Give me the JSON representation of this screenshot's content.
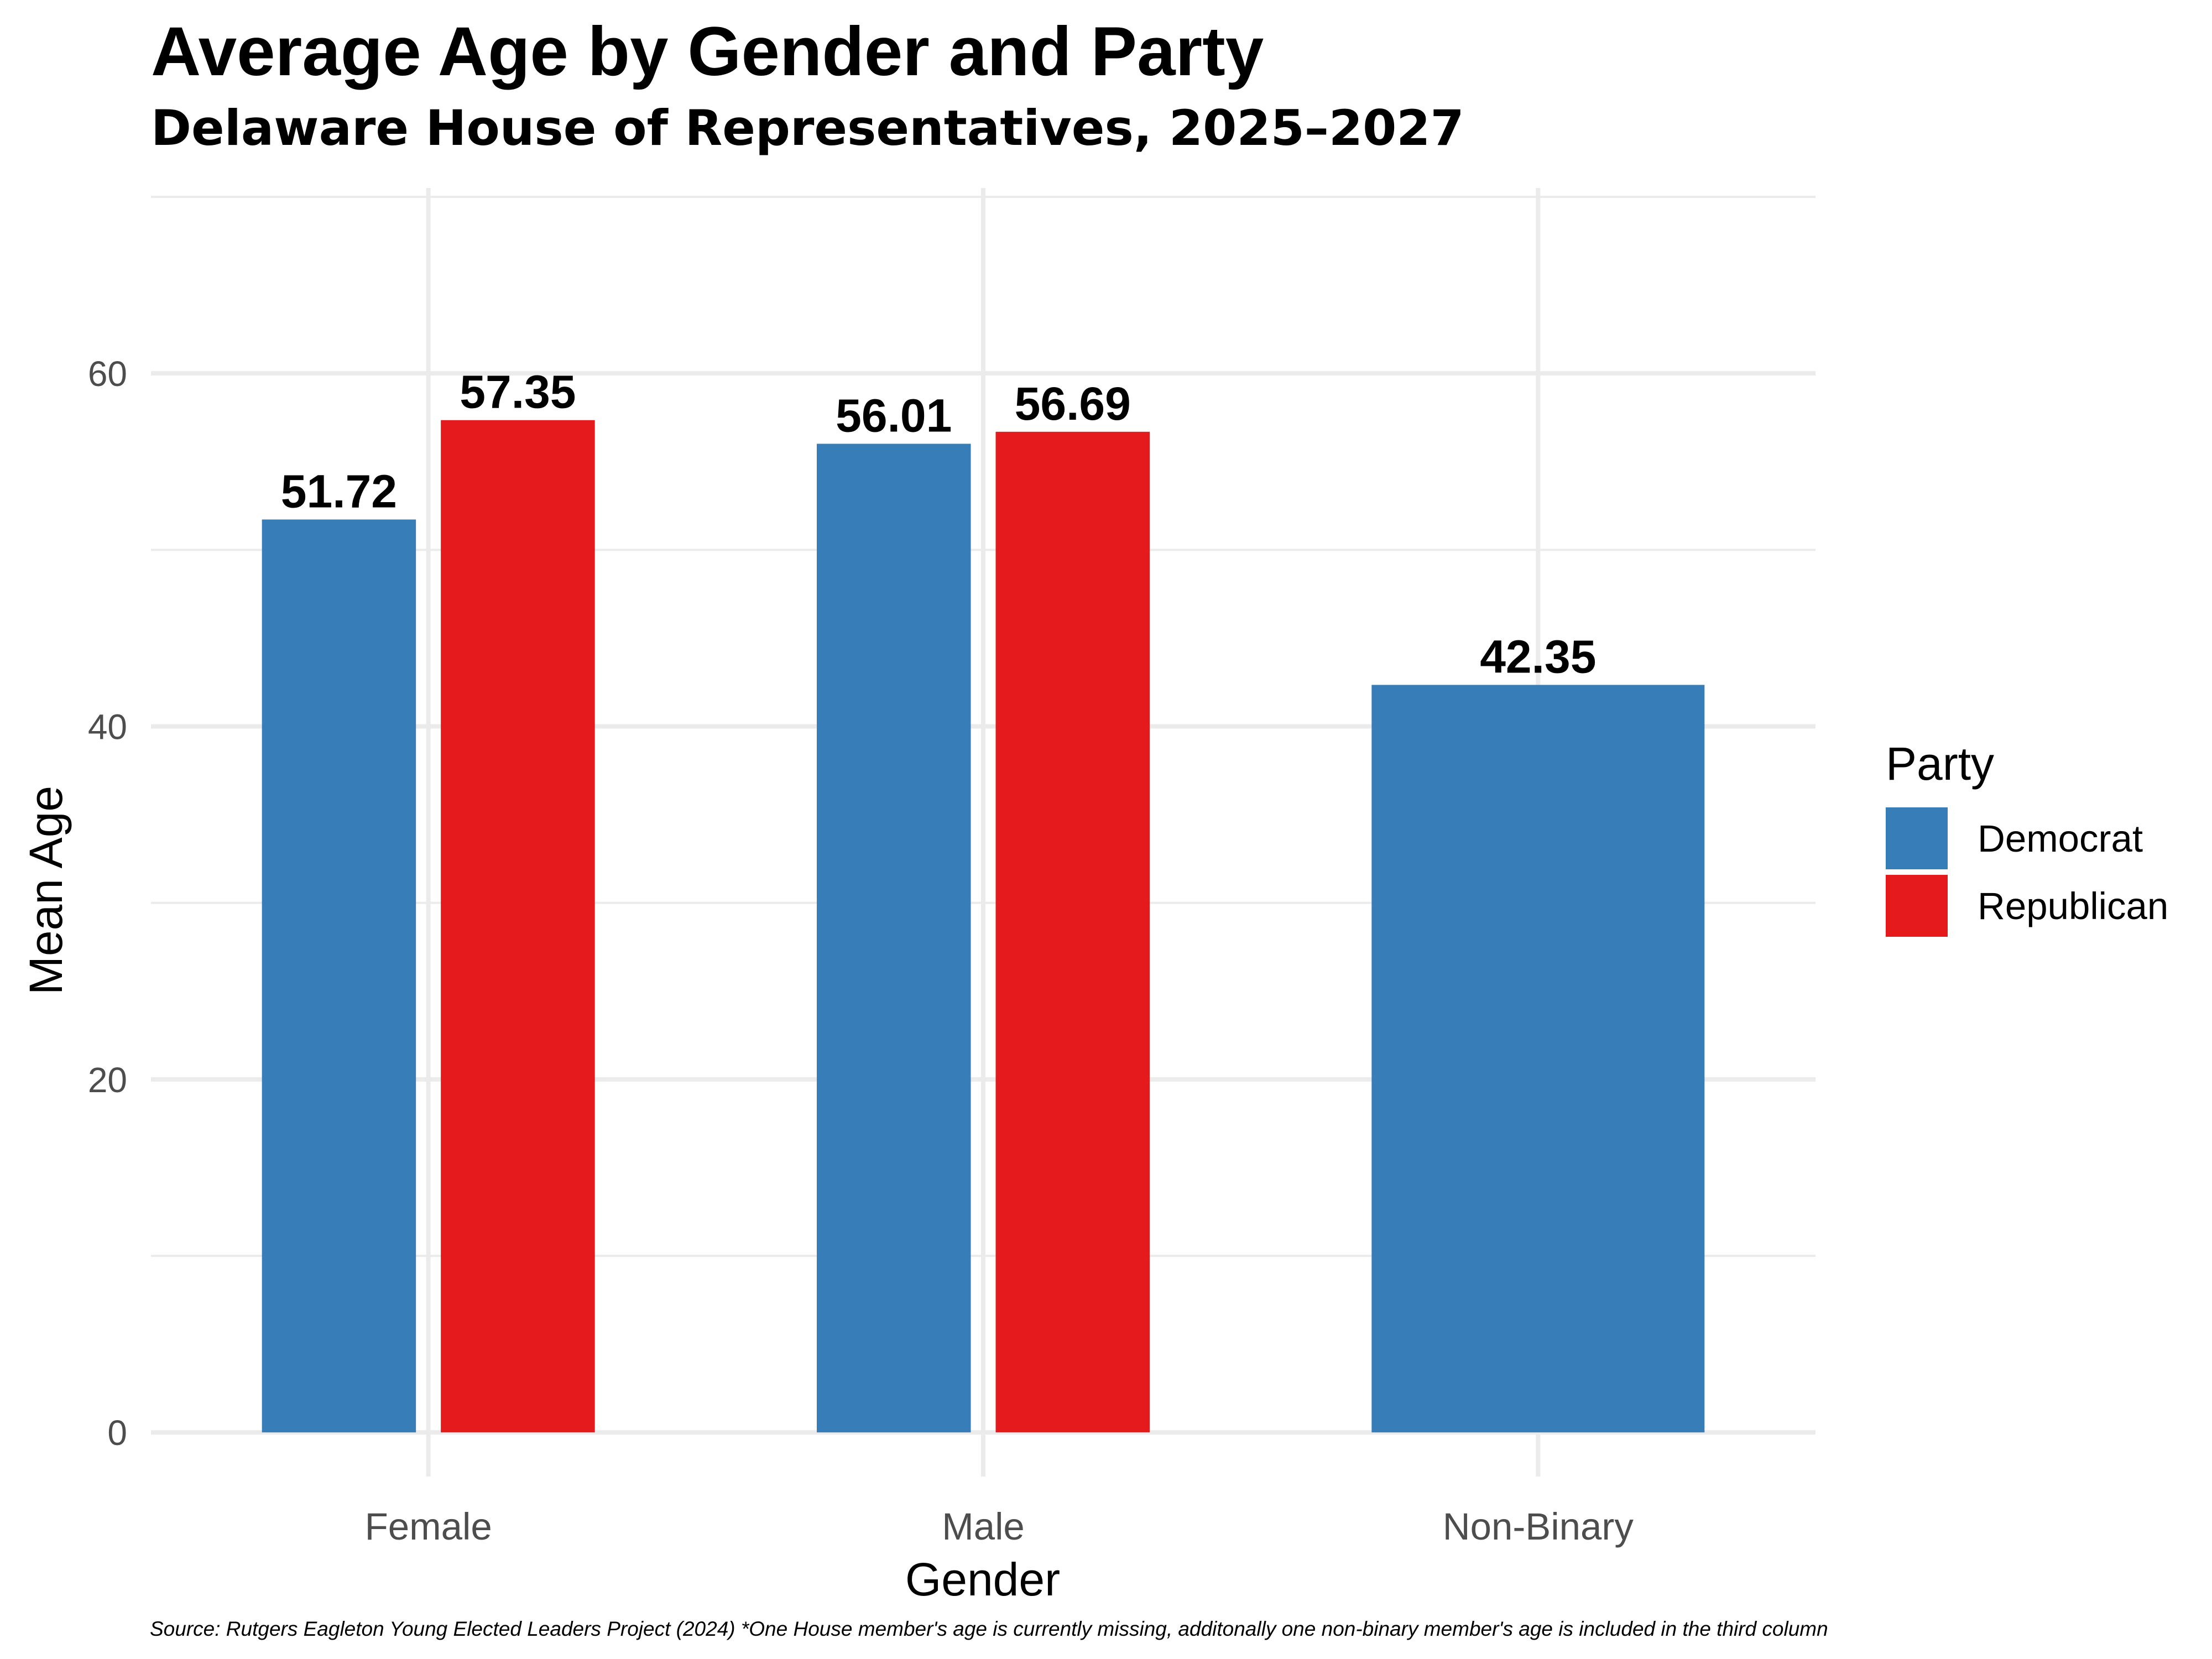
{
  "chart_data": {
    "type": "bar",
    "title": "Average Age by Gender and Party",
    "subtitle": "Delaware House of Representatives, 2025–2027",
    "xlabel": "Gender",
    "ylabel": "Mean Age",
    "categories": [
      "Female",
      "Male",
      "Non-Binary"
    ],
    "series": [
      {
        "name": "Democrat",
        "color": "#377EB8",
        "values": [
          51.72,
          56.01,
          42.35
        ]
      },
      {
        "name": "Republican",
        "color": "#E41A1C",
        "values": [
          57.35,
          56.69,
          null
        ]
      }
    ],
    "data_labels": [
      [
        "51.72",
        "56.01",
        "42.35"
      ],
      [
        "57.35",
        "56.69",
        ""
      ]
    ],
    "y_ticks": [
      0,
      20,
      40,
      60
    ],
    "ylim": [
      -2.5,
      70.5
    ],
    "grid": true,
    "legend": {
      "title": "Party",
      "position": "right"
    },
    "caption": "Source: Rutgers Eagleton Young Elected Leaders Project (2024) *One House member's age is currently missing, additonally one non-binary member's age is included in the third column"
  }
}
